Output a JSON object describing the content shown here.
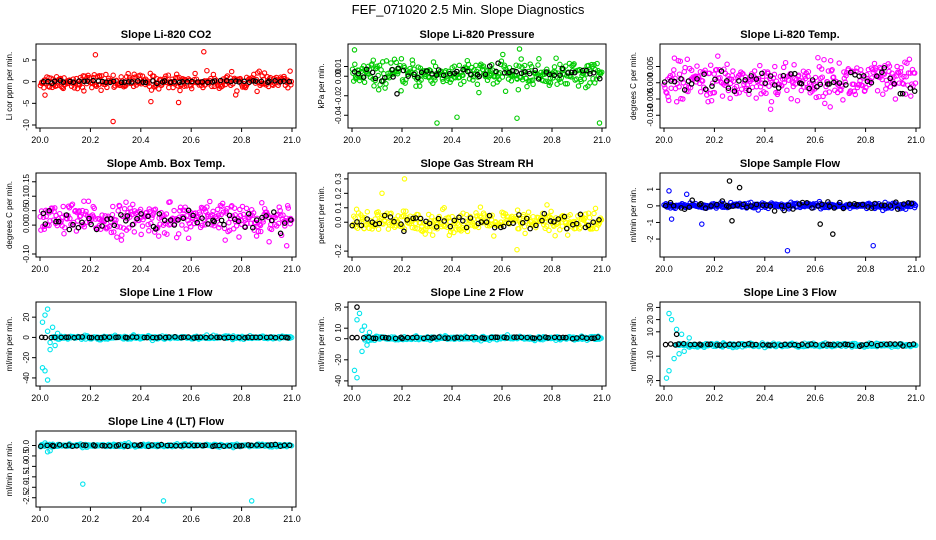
{
  "page_title": "FEF_071020  2.5 Min. Slope Diagnostics",
  "chart_data": [
    {
      "type": "scatter",
      "title": "Slope Li-820 CO2",
      "ylabel": "Li cor ppm per min.",
      "xlabel": "",
      "xlim": [
        20.0,
        21.0
      ],
      "ylim": [
        -10,
        8
      ],
      "yticks": [
        -10,
        -5,
        0,
        5
      ],
      "xticks": [
        20.0,
        20.2,
        20.4,
        20.6,
        20.8,
        21.0
      ],
      "series": [
        {
          "name": "points",
          "color": "#ff0000",
          "n": 300,
          "start": 20.0,
          "end": 21.0,
          "center": 0,
          "spread": 1.6,
          "outliers": [
            [
              20.22,
              6.2
            ],
            [
              20.65,
              6.9
            ],
            [
              20.29,
              -9.2
            ],
            [
              20.44,
              -4.6
            ],
            [
              20.55,
              -4.8
            ],
            [
              20.02,
              -3.1
            ]
          ]
        },
        {
          "name": "means",
          "color": "#000000",
          "n": 55,
          "start": 20.0,
          "end": 21.0,
          "center": 0,
          "spread": 0.25
        }
      ]
    },
    {
      "type": "scatter",
      "title": "Slope Li-820 Pressure",
      "ylabel": "kPa per min.",
      "xlabel": "",
      "xlim": [
        20.0,
        21.0
      ],
      "ylim": [
        -0.05,
        0.03
      ],
      "yticks": [
        -0.04,
        -0.02,
        0.0,
        0.01
      ],
      "xticks": [
        20.0,
        20.2,
        20.4,
        20.6,
        20.8,
        21.0
      ],
      "series": [
        {
          "name": "points",
          "color": "#00cc00",
          "n": 330,
          "start": 20.0,
          "end": 21.0,
          "center": 0.002,
          "spread": 0.012,
          "outliers": [
            [
              20.34,
              -0.048
            ],
            [
              20.42,
              -0.042
            ],
            [
              20.66,
              -0.043
            ],
            [
              20.99,
              -0.048
            ],
            [
              20.01,
              0.027
            ],
            [
              20.67,
              0.028
            ]
          ]
        },
        {
          "name": "means",
          "color": "#000000",
          "n": 55,
          "start": 20.0,
          "end": 21.0,
          "center": 0.003,
          "spread": 0.006,
          "outliers": [
            [
              20.18,
              -0.018
            ]
          ]
        }
      ]
    },
    {
      "type": "scatter",
      "title": "Slope Li-820 Temp.",
      "ylabel": "degrees C per min.",
      "xlabel": "",
      "xlim": [
        20.0,
        21.0
      ],
      "ylim": [
        -0.013,
        0.011
      ],
      "yticks": [
        -0.01,
        -0.005,
        0.0,
        0.005
      ],
      "xticks": [
        20.0,
        20.2,
        20.4,
        20.6,
        20.8,
        21.0
      ],
      "series": [
        {
          "name": "points",
          "color": "#ff00ff",
          "n": 330,
          "start": 20.0,
          "end": 21.0,
          "center": 0.0005,
          "spread": 0.0055
        },
        {
          "name": "means",
          "color": "#000000",
          "n": 55,
          "start": 20.0,
          "end": 21.0,
          "center": 0.0005,
          "spread": 0.0035
        }
      ]
    },
    {
      "type": "scatter",
      "title": "Slope Amb. Box Temp.",
      "ylabel": "degrees C per min.",
      "xlabel": "",
      "xlim": [
        20.0,
        21.0
      ],
      "ylim": [
        -0.1,
        0.17
      ],
      "yticks": [
        -0.1,
        0.0,
        0.05,
        0.1,
        0.15
      ],
      "xticks": [
        20.0,
        20.2,
        20.4,
        20.6,
        20.8,
        21.0
      ],
      "series": [
        {
          "name": "points",
          "color": "#ff00ff",
          "n": 330,
          "start": 20.0,
          "end": 21.0,
          "center": 0.02,
          "spread": 0.05
        },
        {
          "name": "means",
          "color": "#000000",
          "n": 55,
          "start": 20.0,
          "end": 21.0,
          "center": 0.02,
          "spread": 0.03
        }
      ]
    },
    {
      "type": "scatter",
      "title": "Slope Gas Stream RH",
      "ylabel": "percent per min.",
      "xlabel": "",
      "xlim": [
        20.0,
        21.0
      ],
      "ylim": [
        -0.22,
        0.32
      ],
      "yticks": [
        -0.2,
        0.0,
        0.1,
        0.2,
        0.3
      ],
      "xticks": [
        20.0,
        20.2,
        20.4,
        20.6,
        20.8,
        21.0
      ],
      "series": [
        {
          "name": "points",
          "color": "#ffff00",
          "n": 330,
          "start": 20.0,
          "end": 21.0,
          "center": 0.0,
          "spread": 0.07,
          "outliers": [
            [
              20.21,
              0.3
            ],
            [
              20.12,
              0.2
            ],
            [
              20.66,
              -0.19
            ],
            [
              20.78,
              0.12
            ]
          ]
        },
        {
          "name": "means",
          "color": "#000000",
          "n": 55,
          "start": 20.0,
          "end": 21.0,
          "center": 0.0,
          "spread": 0.055
        }
      ]
    },
    {
      "type": "scatter",
      "title": "Slope Sample Flow",
      "ylabel": "ml/min per min.",
      "xlabel": "",
      "xlim": [
        20.0,
        21.0
      ],
      "ylim": [
        -2.9,
        1.8
      ],
      "yticks": [
        -2,
        -1,
        0,
        1
      ],
      "xticks": [
        20.0,
        20.2,
        20.4,
        20.6,
        20.8,
        21.0
      ],
      "series": [
        {
          "name": "points",
          "color": "#0000ff",
          "n": 330,
          "start": 20.0,
          "end": 21.0,
          "center": 0.0,
          "spread": 0.15,
          "outliers": [
            [
              20.02,
              0.9
            ],
            [
              20.03,
              -0.8
            ],
            [
              20.15,
              -1.1
            ],
            [
              20.49,
              -2.7
            ],
            [
              20.83,
              -2.4
            ],
            [
              20.09,
              0.7
            ]
          ]
        },
        {
          "name": "means",
          "color": "#000000",
          "n": 55,
          "start": 20.0,
          "end": 21.0,
          "center": 0.05,
          "spread": 0.25,
          "outliers": [
            [
              20.26,
              1.5
            ],
            [
              20.3,
              1.1
            ],
            [
              20.67,
              -1.7
            ],
            [
              20.62,
              -1.1
            ],
            [
              20.27,
              -0.9
            ]
          ]
        }
      ]
    },
    {
      "type": "scatter",
      "title": "Slope Line 1 Flow",
      "ylabel": "ml/min per min.",
      "xlabel": "",
      "xlim": [
        20.0,
        21.0
      ],
      "ylim": [
        -45,
        32
      ],
      "yticks": [
        -40,
        -20,
        0,
        20
      ],
      "xticks": [
        20.0,
        20.2,
        20.4,
        20.6,
        20.8,
        21.0
      ],
      "series": [
        {
          "name": "points",
          "color": "#00e5ee",
          "n": 300,
          "start": 20.05,
          "end": 21.0,
          "center": 0.0,
          "spread": 1.6,
          "outliers": [
            [
              20.01,
              -30
            ],
            [
              20.02,
              -33
            ],
            [
              20.03,
              -42
            ],
            [
              20.02,
              22
            ],
            [
              20.03,
              28
            ],
            [
              20.01,
              15
            ],
            [
              20.04,
              -12
            ],
            [
              20.05,
              10
            ],
            [
              20.03,
              6
            ],
            [
              20.04,
              -5
            ],
            [
              20.06,
              -8
            ],
            [
              20.07,
              4
            ]
          ]
        },
        {
          "name": "means",
          "color": "#000000",
          "n": 55,
          "start": 20.0,
          "end": 21.0,
          "center": 0.0,
          "spread": 0.4
        }
      ]
    },
    {
      "type": "scatter",
      "title": "Slope Line 2 Flow",
      "ylabel": "ml/min per min.",
      "xlabel": "",
      "xlim": [
        20.0,
        21.0
      ],
      "ylim": [
        -42,
        32
      ],
      "yticks": [
        -40,
        -20,
        0,
        10,
        30
      ],
      "xticks": [
        20.0,
        20.2,
        20.4,
        20.6,
        20.8,
        21.0
      ],
      "series": [
        {
          "name": "points",
          "color": "#00e5ee",
          "n": 300,
          "start": 20.05,
          "end": 21.0,
          "center": 0.5,
          "spread": 1.6,
          "outliers": [
            [
              20.01,
              -30
            ],
            [
              20.02,
              -37
            ],
            [
              20.02,
              18
            ],
            [
              20.03,
              24
            ],
            [
              20.04,
              -12
            ],
            [
              20.05,
              12
            ],
            [
              20.04,
              8
            ],
            [
              20.06,
              -6
            ],
            [
              20.07,
              6
            ]
          ]
        },
        {
          "name": "means",
          "color": "#000000",
          "n": 55,
          "start": 20.0,
          "end": 21.0,
          "center": 1.0,
          "spread": 0.8,
          "outliers": [
            [
              20.02,
              30
            ]
          ]
        }
      ]
    },
    {
      "type": "scatter",
      "title": "Slope Line 3 Flow",
      "ylabel": "ml/min per min.",
      "xlabel": "",
      "xlim": [
        20.0,
        21.0
      ],
      "ylim": [
        -32,
        32
      ],
      "yticks": [
        -30,
        -10,
        10,
        20,
        30
      ],
      "xticks": [
        20.0,
        20.2,
        20.4,
        20.6,
        20.8,
        21.0
      ],
      "series": [
        {
          "name": "points",
          "color": "#00e5ee",
          "n": 300,
          "start": 20.05,
          "end": 21.0,
          "center": -1.0,
          "spread": 1.4,
          "outliers": [
            [
              20.01,
              -28
            ],
            [
              20.02,
              -22
            ],
            [
              20.02,
              25
            ],
            [
              20.03,
              20
            ],
            [
              20.04,
              -12
            ],
            [
              20.05,
              12
            ],
            [
              20.06,
              -8
            ],
            [
              20.07,
              8
            ],
            [
              20.08,
              -6
            ],
            [
              20.1,
              5
            ]
          ]
        },
        {
          "name": "means",
          "color": "#000000",
          "n": 55,
          "start": 20.0,
          "end": 21.0,
          "center": -0.5,
          "spread": 0.8,
          "outliers": [
            [
              20.05,
              8
            ]
          ]
        }
      ]
    },
    {
      "type": "scatter",
      "title": "Slope Line 4 (LT) Flow",
      "ylabel": "ml/min per min.",
      "xlabel": "",
      "xlim": [
        20.0,
        21.0
      ],
      "ylim": [
        -2.8,
        0.55
      ],
      "yticks": [
        -2.5,
        -2.0,
        -1.5,
        -1.0,
        -0.5,
        0.0
      ],
      "xticks": [
        20.0,
        20.2,
        20.4,
        20.6,
        20.8,
        21.0
      ],
      "series": [
        {
          "name": "points",
          "color": "#00e5ee",
          "n": 300,
          "start": 20.0,
          "end": 21.0,
          "center": 0.0,
          "spread": 0.06,
          "outliers": [
            [
              20.17,
              -1.85
            ],
            [
              20.49,
              -2.65
            ],
            [
              20.84,
              -2.65
            ],
            [
              20.02,
              0.12
            ],
            [
              20.04,
              -0.25
            ],
            [
              20.03,
              -0.3
            ]
          ]
        },
        {
          "name": "means",
          "color": "#000000",
          "n": 55,
          "start": 20.0,
          "end": 21.0,
          "center": 0.0,
          "spread": 0.04
        }
      ]
    }
  ]
}
